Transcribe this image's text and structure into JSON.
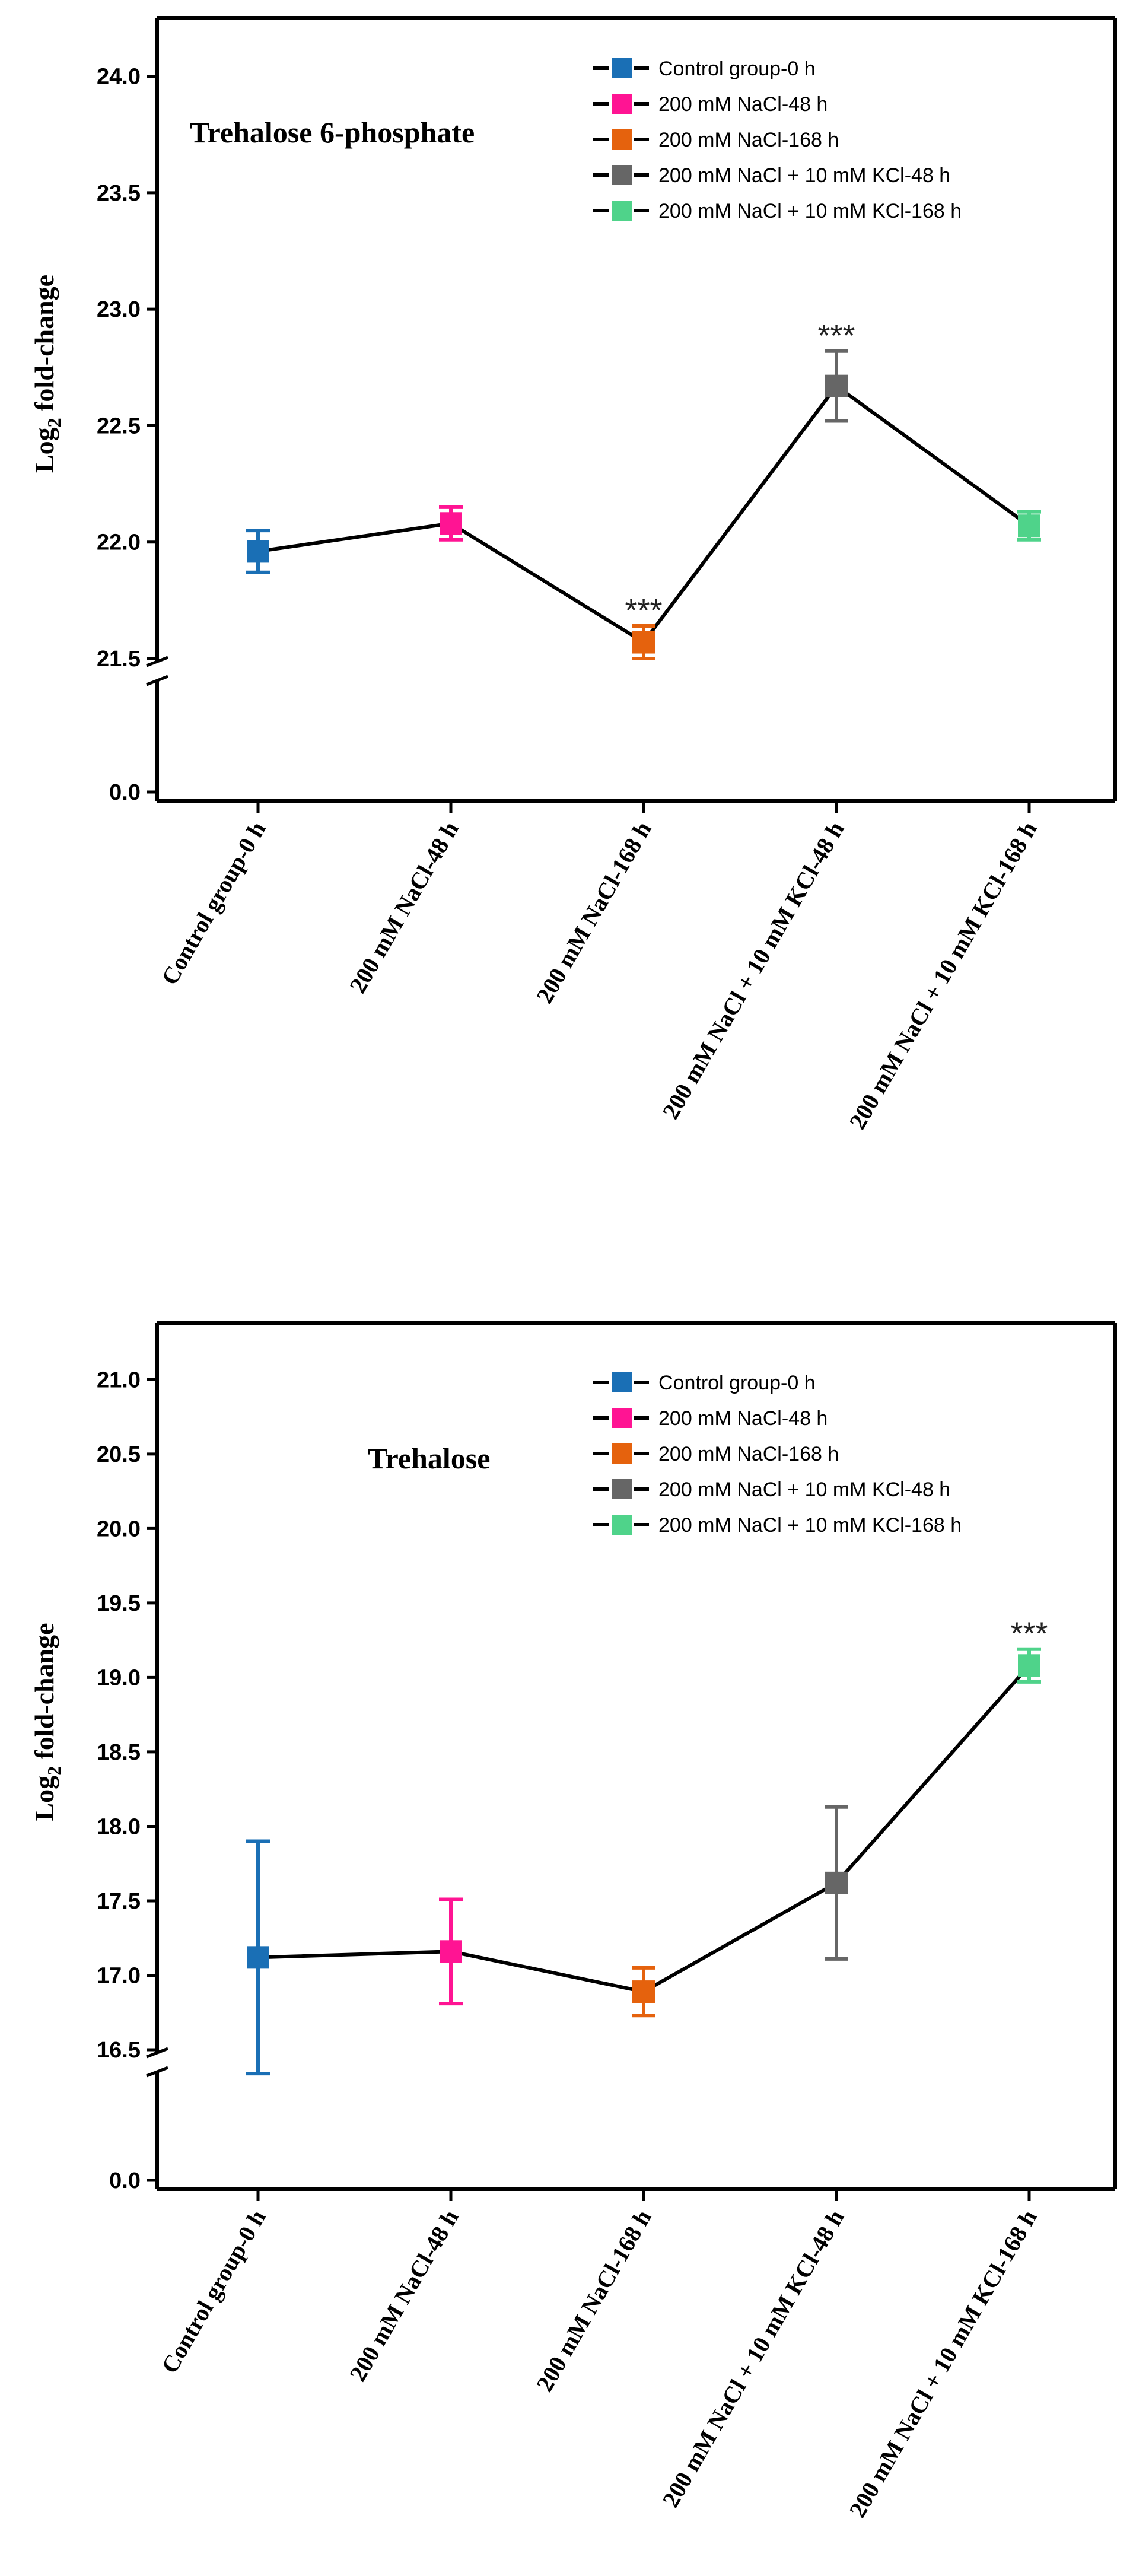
{
  "chart_data": [
    {
      "type": "line",
      "title": "Trehalose 6-phosphate",
      "ylabel_main": "Log",
      "ylabel_sub": "2",
      "ylabel_rest": " fold-change",
      "categories": [
        "Control group-0 h",
        "200 mM NaCl-48 h",
        "200 mM NaCl-168 h",
        "200 mM NaCl + 10 mM KCl-48 h",
        "200 mM NaCl + 10 mM KCl-168 h"
      ],
      "values": [
        21.96,
        22.08,
        21.57,
        22.67,
        22.07
      ],
      "errors": [
        0.09,
        0.07,
        0.07,
        0.15,
        0.06
      ],
      "significance": [
        "",
        "",
        "***",
        "***",
        ""
      ],
      "y_ticks": [
        "0.0",
        "21.5",
        "22.0",
        "22.5",
        "23.0",
        "23.5",
        "24.0"
      ],
      "ylim_upper": [
        21.5,
        24.2
      ],
      "axis_break": true,
      "colors": [
        "#1a6fb5",
        "#ff1493",
        "#e5620d",
        "#666666",
        "#4fd38a"
      ],
      "legend": [
        "Control group-0 h",
        "200 mM NaCl-48 h",
        "200 mM NaCl-168 h",
        "200 mM NaCl + 10 mM KCl-48 h",
        "200 mM NaCl + 10 mM KCl-168 h"
      ]
    },
    {
      "type": "line",
      "title": "Trehalose",
      "ylabel_main": "Log",
      "ylabel_sub": "2",
      "ylabel_rest": " fold-change",
      "categories": [
        "Control group-0 h",
        "200 mM NaCl-48 h",
        "200 mM NaCl-168 h",
        "200 mM NaCl + 10 mM KCl-48 h",
        "200 mM NaCl + 10 mM KCl-168 h"
      ],
      "values": [
        17.12,
        17.16,
        16.89,
        17.62,
        19.08
      ],
      "errors": [
        0.78,
        0.35,
        0.16,
        0.51,
        0.11
      ],
      "significance": [
        "",
        "",
        "",
        "",
        "***"
      ],
      "y_ticks": [
        "0.0",
        "16.5",
        "17.0",
        "17.5",
        "18.0",
        "18.5",
        "19.0",
        "19.5",
        "20.0",
        "20.5",
        "21.0"
      ],
      "ylim_upper": [
        16.5,
        21.3
      ],
      "axis_break": true,
      "colors": [
        "#1a6fb5",
        "#ff1493",
        "#e5620d",
        "#666666",
        "#4fd38a"
      ],
      "legend": [
        "Control group-0 h",
        "200 mM NaCl-48 h",
        "200 mM NaCl-168 h",
        "200 mM NaCl + 10 mM KCl-48 h",
        "200 mM NaCl + 10 mM KCl-168 h"
      ]
    }
  ]
}
